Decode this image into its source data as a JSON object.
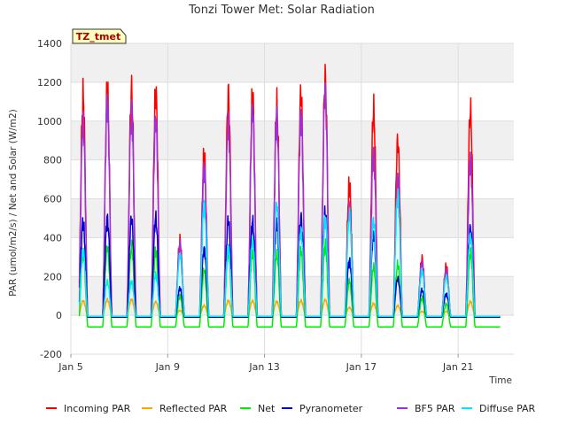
{
  "chart_data": {
    "type": "line",
    "title": "Tonzi Tower Met: Solar Radiation",
    "xlabel": "Time",
    "ylabel": "PAR (umol/m2/s) / Net and Solar (W/m2)",
    "ylim": [
      -200,
      1400
    ],
    "yticks": [
      -200,
      0,
      200,
      400,
      600,
      800,
      1000,
      1200,
      1400
    ],
    "xlim": [
      5.0,
      23.3
    ],
    "xticks": [
      5,
      9,
      13,
      17,
      21
    ],
    "xtick_labels": [
      "Jan 5",
      "Jan 9",
      "Jan 13",
      "Jan 17",
      "Jan 21"
    ],
    "grid": true,
    "site_badge": "TZ_tmet",
    "days": [
      5.5,
      6.5,
      7.5,
      8.5,
      9.5,
      10.5,
      11.5,
      12.5,
      13.5,
      14.5,
      15.5,
      16.5,
      17.5,
      18.5,
      19.5,
      20.5,
      21.5,
      22.5
    ],
    "series": [
      {
        "name": "Incoming PAR",
        "color": "#ff0000",
        "night": -10,
        "peaks": [
          1120,
          1150,
          1160,
          1150,
          380,
          820,
          1140,
          1120,
          1070,
          1135,
          1220,
          670,
          1050,
          900,
          290,
          250,
          1050,
          0
        ]
      },
      {
        "name": "Reflected PAR",
        "color": "#ffa500",
        "night": -5,
        "peaks": [
          75,
          80,
          80,
          70,
          25,
          50,
          75,
          75,
          70,
          75,
          80,
          40,
          60,
          50,
          20,
          20,
          70,
          0
        ]
      },
      {
        "name": "Net",
        "color": "#00ee00",
        "night": -60,
        "peaks": [
          320,
          350,
          350,
          330,
          100,
          230,
          330,
          320,
          320,
          330,
          360,
          180,
          250,
          260,
          90,
          60,
          320,
          0
        ]
      },
      {
        "name": "Pyranometer",
        "color": "#0000cc",
        "night": -10,
        "peaks": [
          480,
          500,
          500,
          500,
          140,
          340,
          490,
          480,
          480,
          505,
          530,
          280,
          420,
          190,
          130,
          110,
          450,
          0
        ]
      },
      {
        "name": "BF5 PAR",
        "color": "#9a30e0",
        "night": -5,
        "peaks": [
          1000,
          1100,
          1060,
          1010,
          370,
          760,
          1000,
          1050,
          1030,
          1030,
          1150,
          560,
          840,
          720,
          270,
          230,
          810,
          0
        ]
      },
      {
        "name": "Diffuse PAR",
        "color": "#00e8ff",
        "night": -5,
        "peaks": [
          330,
          175,
          175,
          210,
          310,
          570,
          350,
          380,
          570,
          440,
          500,
          520,
          490,
          620,
          230,
          200,
          410,
          0
        ]
      }
    ]
  }
}
